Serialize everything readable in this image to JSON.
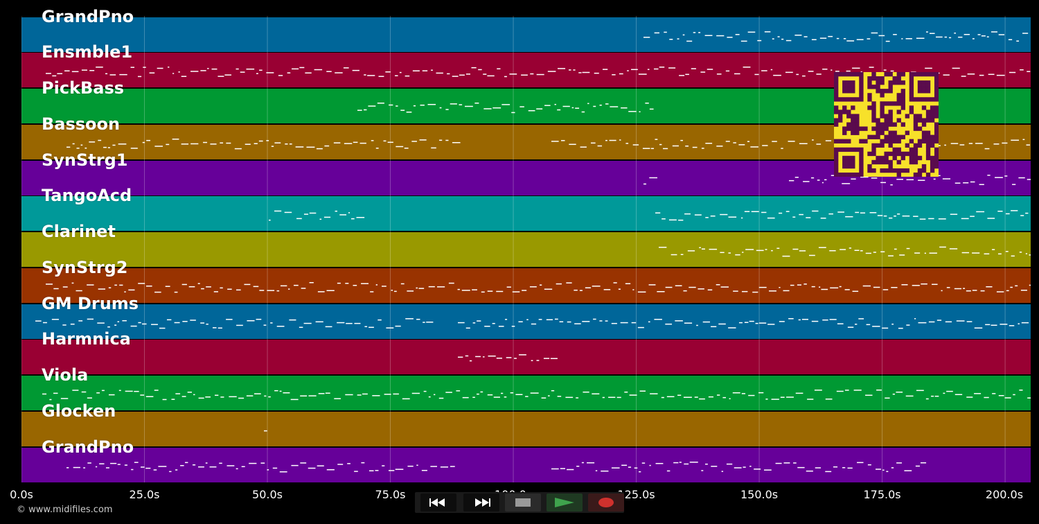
{
  "tracks": [
    {
      "name": "GrandPno",
      "color": "#006699"
    },
    {
      "name": "Ensmble1",
      "color": "#990033"
    },
    {
      "name": "PickBass",
      "color": "#009933"
    },
    {
      "name": "Bassoon",
      "color": "#996600"
    },
    {
      "name": "SynStrg1",
      "color": "#660099"
    },
    {
      "name": "TangoAcd",
      "color": "#009999"
    },
    {
      "name": "Clarinet",
      "color": "#999900"
    },
    {
      "name": "SynStrg2",
      "color": "#993300"
    },
    {
      "name": "GM Drums",
      "color": "#006699"
    },
    {
      "name": "Harmnica",
      "color": "#990033"
    },
    {
      "name": "Viola",
      "color": "#009933"
    },
    {
      "name": "Glocken",
      "color": "#996600"
    },
    {
      "name": "GrandPno",
      "color": "#660099"
    }
  ],
  "timeline": {
    "ticks": [
      "0.0s",
      "25.0s",
      "50.0s",
      "75.0s",
      "100.0s",
      "125.0s",
      "150.0s",
      "175.0s",
      "200.0s"
    ],
    "tick_values_s": [
      0,
      25,
      50,
      75,
      100,
      125,
      150,
      175,
      200
    ],
    "max_seconds": 205.2
  },
  "copyright": "© www.midifiles.com",
  "transport": {
    "rewind": "rewind-icon",
    "fast_forward": "fast-forward-icon",
    "stop": "stop-icon",
    "play": "play-icon",
    "record": "record-icon"
  },
  "colors": {
    "background": "#000000",
    "qr": "#f7e12a",
    "qr_dark": "#5a0b4d",
    "play": "#3fa34d",
    "record": "#d0312d"
  }
}
